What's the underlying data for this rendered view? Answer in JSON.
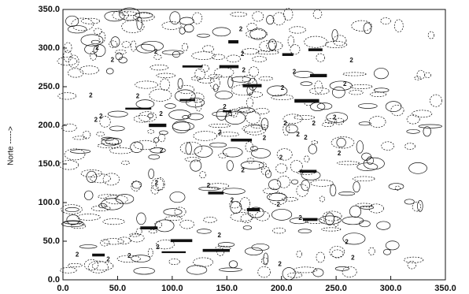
{
  "chart_data": {
    "type": "contour",
    "ylabel": "Norte ----->",
    "contour_label": "2",
    "xlim": [
      0,
      350
    ],
    "ylim": [
      0,
      350
    ],
    "xticks": [
      {
        "value": 0,
        "label": "0.0"
      },
      {
        "value": 50,
        "label": "50.0"
      },
      {
        "value": 100,
        "label": "100.0"
      },
      {
        "value": 150,
        "label": "150.0"
      },
      {
        "value": 200,
        "label": "200.0"
      },
      {
        "value": 250,
        "label": "250.0"
      },
      {
        "value": 300,
        "label": "300.0"
      },
      {
        "value": 350,
        "label": "350.0"
      }
    ],
    "yticks": [
      {
        "value": 0,
        "label": "0.0"
      },
      {
        "value": 50,
        "label": "50.0"
      },
      {
        "value": 100,
        "label": "100.0"
      },
      {
        "value": 150,
        "label": "150.0"
      },
      {
        "value": 200,
        "label": "200.0"
      },
      {
        "value": 250,
        "label": "250.0"
      },
      {
        "value": 300,
        "label": "300.0"
      },
      {
        "value": 350,
        "label": "350.0"
      }
    ],
    "color": "#111111"
  }
}
